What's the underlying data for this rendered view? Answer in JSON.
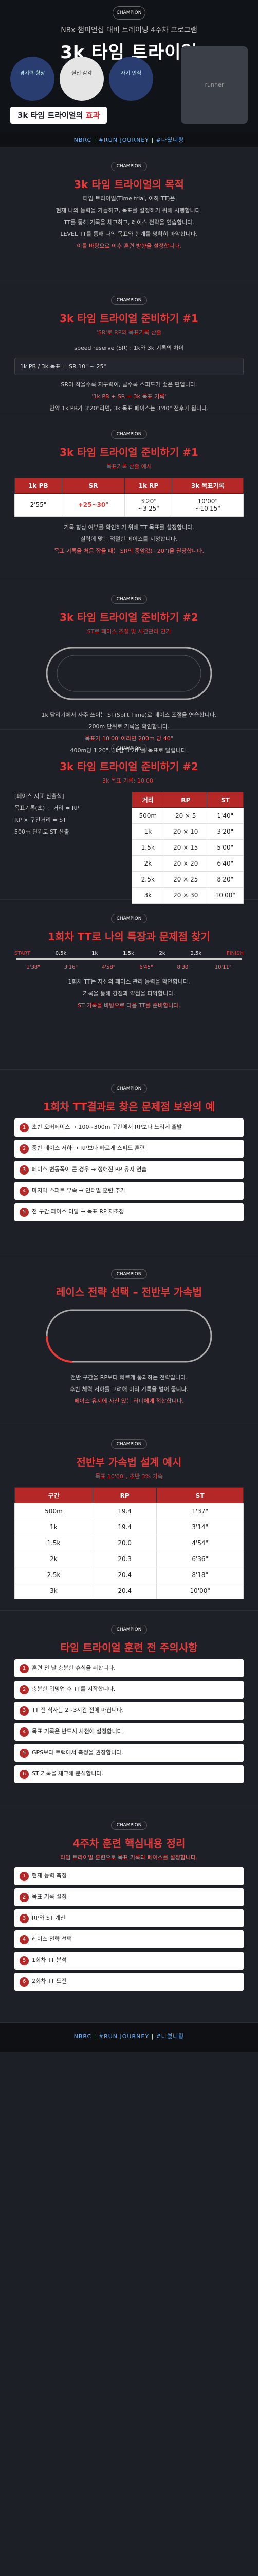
{
  "hero": {
    "logo": "CHAMPION",
    "sub": "NBx 챔피언십 대비 트레이닝 4주차 프로그램",
    "title": "3k 타임 트라이얼",
    "circles": [
      "경기력 향상",
      "실전 감각",
      "자기 인식"
    ],
    "runner_alt": "runner",
    "badge_text": "3k 타임 트라이얼의 ",
    "badge_hl": "효과"
  },
  "tagbar": {
    "a": "NBRC",
    "b": "#RUN JOURNEY",
    "c": "#나였니랑"
  },
  "s1": {
    "logo": "CHAMPION",
    "title": "3k 타임 트라이얼의 목적",
    "p1": "타임 트라이얼(Time trial, 이하 TT)은",
    "p2": "현재 나의 능력을 가늠하고, 목표를 설정하기 위해 시행합니다.",
    "p3": "TT를 통해 기록을 체크하고, 레이스 전략을 연습합니다.",
    "p4": "LEVEL TT를 통해 나의 목표와 한계를 명확히 파악합니다.",
    "em": "이를 바탕으로 이후 훈련 방향을 설정합니다."
  },
  "s2": {
    "logo": "CHAMPION",
    "title": "3k 타임 트라이얼 준비하기 #1",
    "h2sub": "'SR'로 RP와 목표기록 산출",
    "p1": "speed reserve (SR) : 1k와 3k 기록의 차이",
    "p2": "1k PB / 3k 목표 = SR 10\" ~ 25\"",
    "p3": "SR이 작을수록 지구력이, 클수록 스피드가 좋은 편입니다.",
    "em": "'1k PB + SR = 3k 목표 기록'",
    "p4": "만약 1k PB가 3'20\"라면, 3k 목표 페이스는 3'40\" 전후가 됩니다."
  },
  "s3": {
    "logo": "CHAMPION",
    "title": "3k 타임 트라이얼 준비하기 #1",
    "h2sub": "목표기록 산출 예시",
    "table": {
      "headers": [
        "1k PB",
        "SR",
        "1k RP",
        "3k 목표기록"
      ],
      "rows": [
        [
          "2'55\"",
          "+25~30\"",
          "3'20\"\n~3'25\"",
          "10'00\"\n~10'15\""
        ]
      ]
    },
    "p1": "기록 향상 여부를 확인하기 위해 TT 목표를 설정합니다.",
    "p2": "실력에 맞는 적절한 페이스를 지정합니다.",
    "em": "목표 기록을 처음 잡을 때는 SR의 중앙값(+20\")을 권장합니다."
  },
  "s4": {
    "logo": "CHAMPION",
    "title": "3k 타임 트라이얼 준비하기 #2",
    "h2sub": "ST로 페이스 조절 및 시간관리 연기",
    "p1": "1k 달리기에서 자주 쓰이는 ST(Split Time)로 페이스 조절을 연습합니다.",
    "p2": "200m 단위로 기록을 확인합니다.",
    "em": "목표가 10'00\"이라면 200m 당 40\"",
    "p3": "400m당 1'20\", 1k당 3'20\"를 목표로 달립니다."
  },
  "s5": {
    "logo": "CHAMPION",
    "title": "3k 타임 트라이얼 준비하기 #2",
    "h2sub": "3k 목표 기록: 10'00\"",
    "left_items": [
      "[페이스 지표 산출식]",
      "목표기록(초) ÷ 거리 = RP",
      "RP × 구간거리 = ST",
      "500m 단위로 ST 산출"
    ],
    "table": {
      "headers": [
        "거리",
        "RP",
        "ST"
      ],
      "rows": [
        [
          "500m",
          "20 × 5",
          "1'40\""
        ],
        [
          "1k",
          "20 × 10",
          "3'20\""
        ],
        [
          "1.5k",
          "20 × 15",
          "5'00\""
        ],
        [
          "2k",
          "20 × 20",
          "6'40\""
        ],
        [
          "2.5k",
          "20 × 25",
          "8'20\""
        ],
        [
          "3k",
          "20 × 30",
          "10'00\""
        ]
      ]
    }
  },
  "s6": {
    "logo": "CHAMPION",
    "title": "1회차 TT로 나의 특장과 문제점 찾기",
    "chart_labels": [
      "START",
      "0.5k",
      "1k",
      "1.5k",
      "2k",
      "2.5k",
      "FINISH"
    ],
    "chart_times": [
      "1'38\"",
      "3'16\"",
      "4'58\"",
      "6'45\"",
      "8'30\"",
      "10'11\""
    ],
    "p1": "1회차 TT는 자신의 페이스 관리 능력을 확인합니다.",
    "p2": "기록을 통해 강점과 약점을 파악합니다.",
    "em": "ST 기록을 바탕으로 다음 TT를 준비합니다."
  },
  "s7": {
    "logo": "CHAMPION",
    "title": "1회차 TT결과로 찾은 문제점 보완의 예",
    "rows": [
      "초반 오버페이스 → 100~300m 구간에서 RP보다 느리게 출발",
      "중반 페이스 저하 → RP보다 빠르게 스피드 훈련",
      "페이스 변동폭이 큰 경우 → 정해진 RP 유지 연습",
      "마지막 스퍼트 부족 → 인터벌 훈련 추가",
      "전 구간 페이스 미달 → 목표 RP 재조정"
    ]
  },
  "s8": {
    "logo": "CHAMPION",
    "title": "레이스 전략 선택 – 전반부 가속법",
    "p1": "전반 구간을 RP보다 빠르게 통과하는 전략입니다.",
    "p2": "후반 체력 저하를 고려해 미리 기록을 벌어 둡니다.",
    "em": "페이스 유지에 자신 있는 러너에게 적합합니다."
  },
  "s9": {
    "logo": "CHAMPION",
    "title": "전반부 가속법 설계 예시",
    "h2sub": "목표 10'00\", 초반 3% 가속",
    "table": {
      "headers": [
        "구간",
        "RP",
        "ST"
      ],
      "rows": [
        [
          "500m",
          "19.4",
          "1'37\""
        ],
        [
          "1k",
          "19.4",
          "3'14\""
        ],
        [
          "1.5k",
          "20.0",
          "4'54\""
        ],
        [
          "2k",
          "20.3",
          "6'36\""
        ],
        [
          "2.5k",
          "20.4",
          "8'18\""
        ],
        [
          "3k",
          "20.4",
          "10'00\""
        ]
      ]
    }
  },
  "s10": {
    "logo": "CHAMPION",
    "title": "타임 트라이얼 훈련 전 주의사항",
    "rows": [
      "훈련 전 날 충분한 휴식을 취합니다.",
      "충분한 워밍업 후 TT를 시작합니다.",
      "TT 전 식사는 2~3시간 전에 마칩니다.",
      "목표 기록은 반드시 사전에 설정합니다.",
      "GPS보다 트랙에서 측정을 권장합니다.",
      "ST 기록을 체크해 분석합니다."
    ]
  },
  "s11": {
    "logo": "CHAMPION",
    "title": "4주차 훈련 핵심내용 정리",
    "p1": "타임 트라이얼 훈련으로 목표 기록과 페이스를 설정합니다.",
    "rows": [
      "현재 능력 측정",
      "목표 기록 설정",
      "RP와 ST 계산",
      "레이스 전략 선택",
      "1회차 TT 분석",
      "2회차 TT 도전"
    ]
  },
  "footer": {
    "a": "NBRC",
    "b": "#RUN JOURNEY",
    "c": "#나였니랑"
  }
}
